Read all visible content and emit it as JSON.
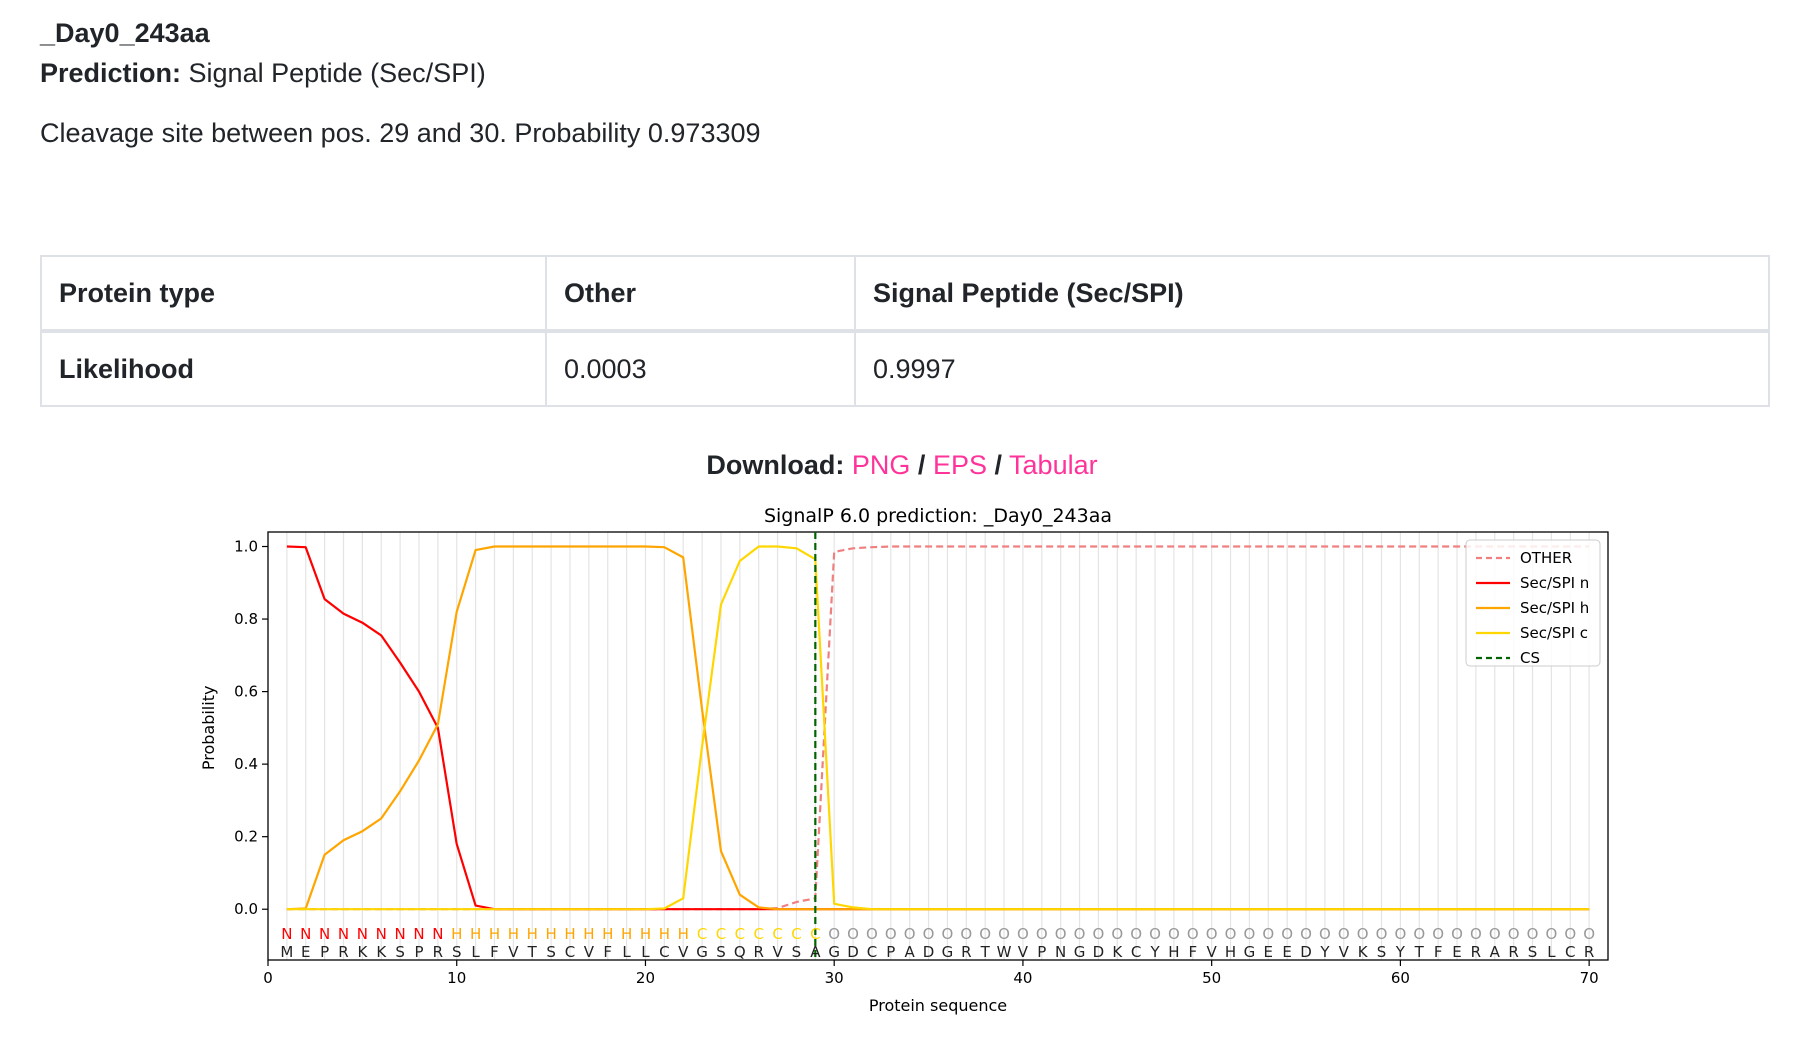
{
  "header": {
    "sequence_name": "_Day0_243aa",
    "prediction_label": "Prediction:",
    "prediction_value": "Signal Peptide (Sec/SPI)",
    "cleavage_text": "Cleavage site between pos. 29 and 30. Probability 0.973309"
  },
  "table": {
    "headers": [
      "Protein type",
      "Other",
      "Signal Peptide (Sec/SPI)"
    ],
    "row_label": "Likelihood",
    "values": [
      "0.0003",
      "0.9997"
    ]
  },
  "download": {
    "label": "Download:",
    "links": [
      "PNG",
      "EPS",
      "Tabular"
    ],
    "separator": "/"
  },
  "colors": {
    "link": "#ff3399",
    "other": "#f08080",
    "sec_n": "#ff0000",
    "sec_h": "#ffa500",
    "sec_c": "#ffd700",
    "cs": "#006400"
  },
  "chart_data": {
    "type": "line",
    "title": "SignalP 6.0 prediction: _Day0_243aa",
    "xlabel": "Protein sequence",
    "ylabel": "Probability",
    "xlim": [
      0,
      71
    ],
    "ylim": [
      -0.14,
      1.04
    ],
    "xticks": [
      0,
      10,
      20,
      30,
      40,
      50,
      60,
      70
    ],
    "yticks": [
      "0.0",
      "0.2",
      "0.4",
      "0.6",
      "0.8",
      "1.0"
    ],
    "grid": "vertical light lines at every residue",
    "legend_position": "top-right",
    "x": [
      1,
      2,
      3,
      4,
      5,
      6,
      7,
      8,
      9,
      10,
      11,
      12,
      13,
      14,
      15,
      16,
      17,
      18,
      19,
      20,
      21,
      22,
      23,
      24,
      25,
      26,
      27,
      28,
      29,
      30,
      31,
      32,
      33,
      34,
      35,
      36,
      37,
      38,
      39,
      40,
      41,
      42,
      43,
      44,
      45,
      46,
      47,
      48,
      49,
      50,
      51,
      52,
      53,
      54,
      55,
      56,
      57,
      58,
      59,
      60,
      61,
      62,
      63,
      64,
      65,
      66,
      67,
      68,
      69,
      70
    ],
    "series": [
      {
        "name": "OTHER",
        "style": "dashed",
        "color": "#f08080",
        "values": [
          0,
          0,
          0,
          0,
          0,
          0,
          0,
          0,
          0,
          0,
          0,
          0,
          0,
          0,
          0,
          0,
          0,
          0,
          0,
          0,
          0,
          0,
          0,
          0,
          0,
          0,
          0.003,
          0.02,
          0.03,
          0.985,
          0.995,
          0.998,
          1,
          1,
          1,
          1,
          1,
          1,
          1,
          1,
          1,
          1,
          1,
          1,
          1,
          1,
          1,
          1,
          1,
          1,
          1,
          1,
          1,
          1,
          1,
          1,
          1,
          1,
          1,
          1,
          1,
          1,
          1,
          1,
          1,
          1,
          1,
          1,
          1,
          1
        ]
      },
      {
        "name": "Sec/SPI n",
        "style": "solid",
        "color": "#ff0000",
        "values": [
          1,
          0.998,
          0.855,
          0.815,
          0.79,
          0.755,
          0.68,
          0.6,
          0.5,
          0.18,
          0.01,
          0,
          0,
          0,
          0,
          0,
          0,
          0,
          0,
          0,
          0,
          0,
          0,
          0,
          0,
          0,
          0,
          0,
          0,
          0,
          0,
          0,
          0,
          0,
          0,
          0,
          0,
          0,
          0,
          0,
          0,
          0,
          0,
          0,
          0,
          0,
          0,
          0,
          0,
          0,
          0,
          0,
          0,
          0,
          0,
          0,
          0,
          0,
          0,
          0,
          0,
          0,
          0,
          0,
          0,
          0,
          0,
          0,
          0,
          0
        ]
      },
      {
        "name": "Sec/SPI h",
        "style": "solid",
        "color": "#ffa500",
        "values": [
          0,
          0.002,
          0.15,
          0.19,
          0.215,
          0.25,
          0.325,
          0.41,
          0.51,
          0.82,
          0.99,
          1,
          1,
          1,
          1,
          1,
          1,
          1,
          1,
          1,
          0.998,
          0.97,
          0.55,
          0.16,
          0.04,
          0.005,
          0,
          0,
          0,
          0,
          0,
          0,
          0,
          0,
          0,
          0,
          0,
          0,
          0,
          0,
          0,
          0,
          0,
          0,
          0,
          0,
          0,
          0,
          0,
          0,
          0,
          0,
          0,
          0,
          0,
          0,
          0,
          0,
          0,
          0,
          0,
          0,
          0,
          0,
          0,
          0,
          0,
          0,
          0,
          0
        ]
      },
      {
        "name": "Sec/SPI c",
        "style": "solid",
        "color": "#ffd700",
        "values": [
          0,
          0,
          0,
          0,
          0,
          0,
          0,
          0,
          0,
          0,
          0,
          0,
          0,
          0,
          0,
          0,
          0,
          0,
          0,
          0,
          0.002,
          0.03,
          0.45,
          0.84,
          0.96,
          1,
          1,
          0.995,
          0.965,
          0.015,
          0.005,
          0,
          0,
          0,
          0,
          0,
          0,
          0,
          0,
          0,
          0,
          0,
          0,
          0,
          0,
          0,
          0,
          0,
          0,
          0,
          0,
          0,
          0,
          0,
          0,
          0,
          0,
          0,
          0,
          0,
          0,
          0,
          0,
          0,
          0,
          0,
          0,
          0,
          0,
          0
        ]
      },
      {
        "name": "CS",
        "style": "dashed",
        "color": "#006400",
        "x_position": 29
      }
    ],
    "region_labels": [
      "N",
      "N",
      "N",
      "N",
      "N",
      "N",
      "N",
      "N",
      "N",
      "H",
      "H",
      "H",
      "H",
      "H",
      "H",
      "H",
      "H",
      "H",
      "H",
      "H",
      "H",
      "H",
      "C",
      "C",
      "C",
      "C",
      "C",
      "C",
      "C",
      "O",
      "O",
      "O",
      "O",
      "O",
      "O",
      "O",
      "O",
      "O",
      "O",
      "O",
      "O",
      "O",
      "O",
      "O",
      "O",
      "O",
      "O",
      "O",
      "O",
      "O",
      "O",
      "O",
      "O",
      "O",
      "O",
      "O",
      "O",
      "O",
      "O",
      "O",
      "O",
      "O",
      "O",
      "O",
      "O",
      "O",
      "O",
      "O",
      "O",
      "O"
    ],
    "sequence": [
      "M",
      "E",
      "P",
      "R",
      "K",
      "K",
      "S",
      "P",
      "R",
      "S",
      "L",
      "F",
      "V",
      "T",
      "S",
      "C",
      "V",
      "F",
      "L",
      "L",
      "C",
      "V",
      "G",
      "S",
      "Q",
      "R",
      "V",
      "S",
      "A",
      "G",
      "D",
      "C",
      "P",
      "A",
      "D",
      "G",
      "R",
      "T",
      "W",
      "V",
      "P",
      "N",
      "G",
      "D",
      "K",
      "C",
      "Y",
      "H",
      "F",
      "V",
      "H",
      "G",
      "E",
      "E",
      "D",
      "Y",
      "V",
      "K",
      "S",
      "Y",
      "T",
      "F",
      "E",
      "R",
      "A",
      "R",
      "S",
      "L",
      "C",
      "R"
    ]
  }
}
